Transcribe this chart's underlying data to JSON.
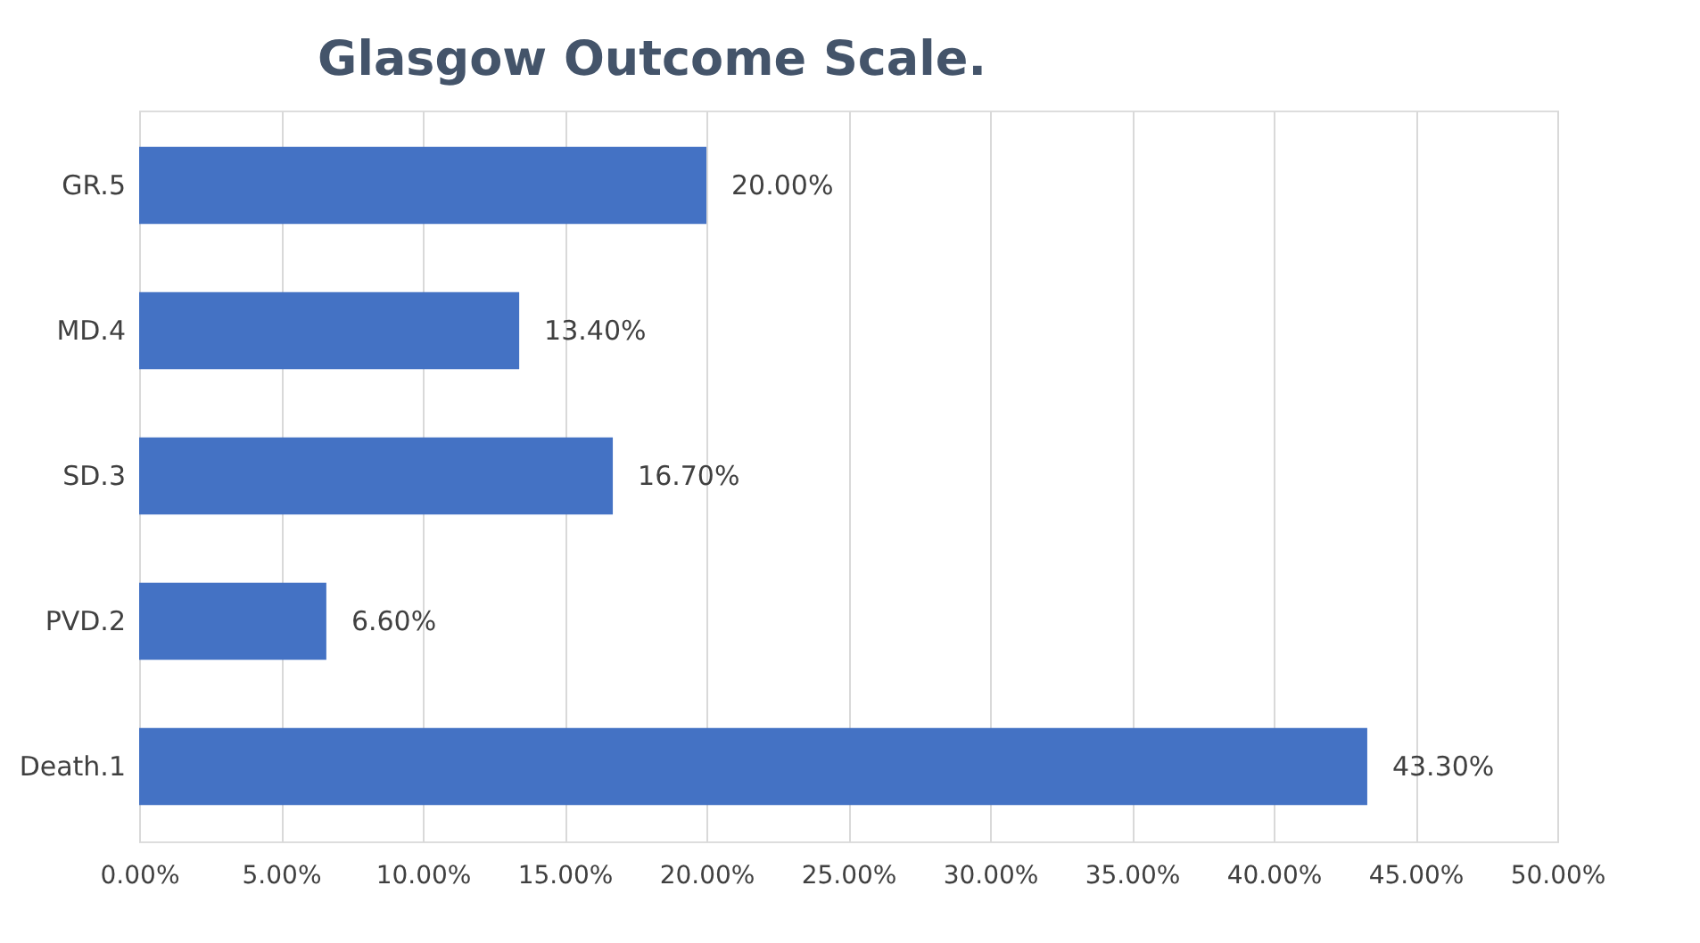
{
  "chart_data": {
    "type": "bar",
    "orientation": "horizontal",
    "title": "Glasgow Outcome Scale.",
    "categories": [
      "GR.5",
      "MD.4",
      "SD.3",
      "PVD.2",
      "Death.1"
    ],
    "values": [
      20.0,
      13.4,
      16.7,
      6.6,
      43.3
    ],
    "value_labels": [
      "20.00%",
      "13.40%",
      "16.70%",
      "6.60%",
      "43.30%"
    ],
    "color": "#4472c4",
    "xlim": [
      0,
      50
    ],
    "xticks": [
      {
        "value": 0,
        "label": "0.00%"
      },
      {
        "value": 5,
        "label": "5.00%"
      },
      {
        "value": 10,
        "label": "10.00%"
      },
      {
        "value": 15,
        "label": "15.00%"
      },
      {
        "value": 20,
        "label": "20.00%"
      },
      {
        "value": 25,
        "label": "25.00%"
      },
      {
        "value": 30,
        "label": "30.00%"
      },
      {
        "value": 35,
        "label": "35.00%"
      },
      {
        "value": 40,
        "label": "40.00%"
      },
      {
        "value": 45,
        "label": "45.00%"
      },
      {
        "value": 50,
        "label": "50.00%"
      }
    ],
    "grid": "x"
  }
}
